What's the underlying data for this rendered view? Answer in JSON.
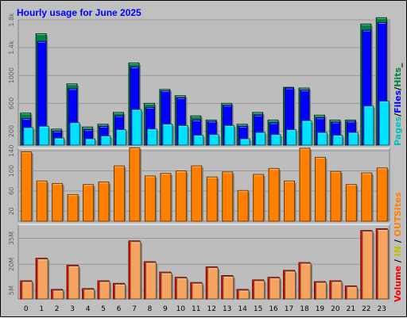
{
  "title": "Hourly usage for June 2025",
  "colors": {
    "background": "#c0c0c0",
    "plot": "#bdbdbd",
    "grid": "#9a9a9a",
    "hits": "#008040",
    "files": "#0000ff",
    "pages": "#00e0ff",
    "sites": "#ff8000",
    "volume": "#ff0000",
    "in": "#f0c040",
    "out": "#ff8000",
    "title": "#0000ff"
  },
  "side_labels": {
    "top": [
      {
        "text": "Pages",
        "color": "#00c0c0"
      },
      {
        "text": "/",
        "color": "#000000"
      },
      {
        "text": "Files",
        "color": "#0000ff"
      },
      {
        "text": "/",
        "color": "#000000"
      },
      {
        "text": "Hits",
        "color": "#008040"
      },
      {
        "text": "_",
        "color": "#000000"
      }
    ],
    "middle": [
      {
        "text": "Sites",
        "color": "#ff8000"
      }
    ],
    "bottom": [
      {
        "text": "Volume",
        "color": "#ff0000"
      },
      {
        "text": " / ",
        "color": "#000000"
      },
      {
        "text": "IN",
        "color": "#c0c000"
      },
      {
        "text": " / ",
        "color": "#000000"
      },
      {
        "text": "OUT",
        "color": "#ff8000"
      }
    ]
  },
  "chart_data": [
    {
      "type": "bar",
      "name": "hits-files-pages",
      "categories": [
        "0",
        "1",
        "2",
        "3",
        "4",
        "5",
        "6",
        "7",
        "8",
        "9",
        "10",
        "11",
        "12",
        "13",
        "14",
        "15",
        "16",
        "17",
        "18",
        "19",
        "20",
        "21",
        "22",
        "23"
      ],
      "ylim": [
        0,
        1800
      ],
      "yticks": [
        200,
        600,
        1000,
        1400,
        1800
      ],
      "ytick_labels": [
        "200",
        "600",
        "1000",
        "1.4k",
        "1.8k"
      ],
      "series": [
        {
          "name": "Hits",
          "values": [
            460,
            1600,
            230,
            880,
            260,
            300,
            470,
            1180,
            600,
            800,
            710,
            420,
            360,
            600,
            300,
            470,
            360,
            830,
            820,
            430,
            360,
            360,
            1740,
            1830
          ]
        },
        {
          "name": "Files",
          "values": [
            380,
            1490,
            200,
            810,
            220,
            270,
            420,
            1120,
            540,
            780,
            680,
            360,
            340,
            570,
            270,
            430,
            320,
            820,
            790,
            390,
            330,
            340,
            1650,
            1760
          ]
        },
        {
          "name": "Pages",
          "values": [
            250,
            270,
            100,
            320,
            90,
            130,
            220,
            510,
            230,
            300,
            280,
            140,
            150,
            280,
            90,
            180,
            150,
            220,
            350,
            180,
            140,
            180,
            560,
            630
          ]
        }
      ]
    },
    {
      "type": "bar",
      "name": "sites",
      "categories": [
        "0",
        "1",
        "2",
        "3",
        "4",
        "5",
        "6",
        "7",
        "8",
        "9",
        "10",
        "11",
        "12",
        "13",
        "14",
        "15",
        "16",
        "17",
        "18",
        "19",
        "20",
        "21",
        "22",
        "23"
      ],
      "ylim": [
        0,
        145
      ],
      "yticks": [
        20,
        60,
        100,
        140
      ],
      "ytick_labels": [
        "20",
        "60",
        "100",
        "140"
      ],
      "series": [
        {
          "name": "Sites",
          "values": [
            138,
            80,
            75,
            53,
            73,
            78,
            110,
            146,
            90,
            95,
            100,
            110,
            88,
            98,
            61,
            93,
            105,
            80,
            145,
            127,
            99,
            73,
            96,
            106
          ]
        }
      ]
    },
    {
      "type": "bar",
      "name": "volume",
      "categories": [
        "0",
        "1",
        "2",
        "3",
        "4",
        "5",
        "6",
        "7",
        "8",
        "9",
        "10",
        "11",
        "12",
        "13",
        "14",
        "15",
        "16",
        "17",
        "18",
        "19",
        "20",
        "21",
        "22",
        "23"
      ],
      "ylim": [
        0,
        43
      ],
      "yticks": [
        5,
        20,
        35
      ],
      "ytick_labels": [
        "5M",
        "20M",
        "35M"
      ],
      "series": [
        {
          "name": "Volume",
          "values": [
            10.5,
            23.5,
            5.5,
            19.5,
            6,
            10.5,
            9,
            33.5,
            21.5,
            15.5,
            12.5,
            9.5,
            18.5,
            13.5,
            5.5,
            11,
            12.5,
            16.5,
            21,
            10,
            10.5,
            7.5,
            39.5,
            40.5
          ]
        },
        {
          "name": "IN",
          "values": [
            10,
            23,
            5,
            19,
            5.5,
            10,
            8.5,
            33,
            21,
            15,
            12,
            9,
            18,
            13,
            5,
            10.5,
            12,
            16,
            20.5,
            9.5,
            10,
            7,
            39,
            40
          ]
        }
      ]
    }
  ]
}
